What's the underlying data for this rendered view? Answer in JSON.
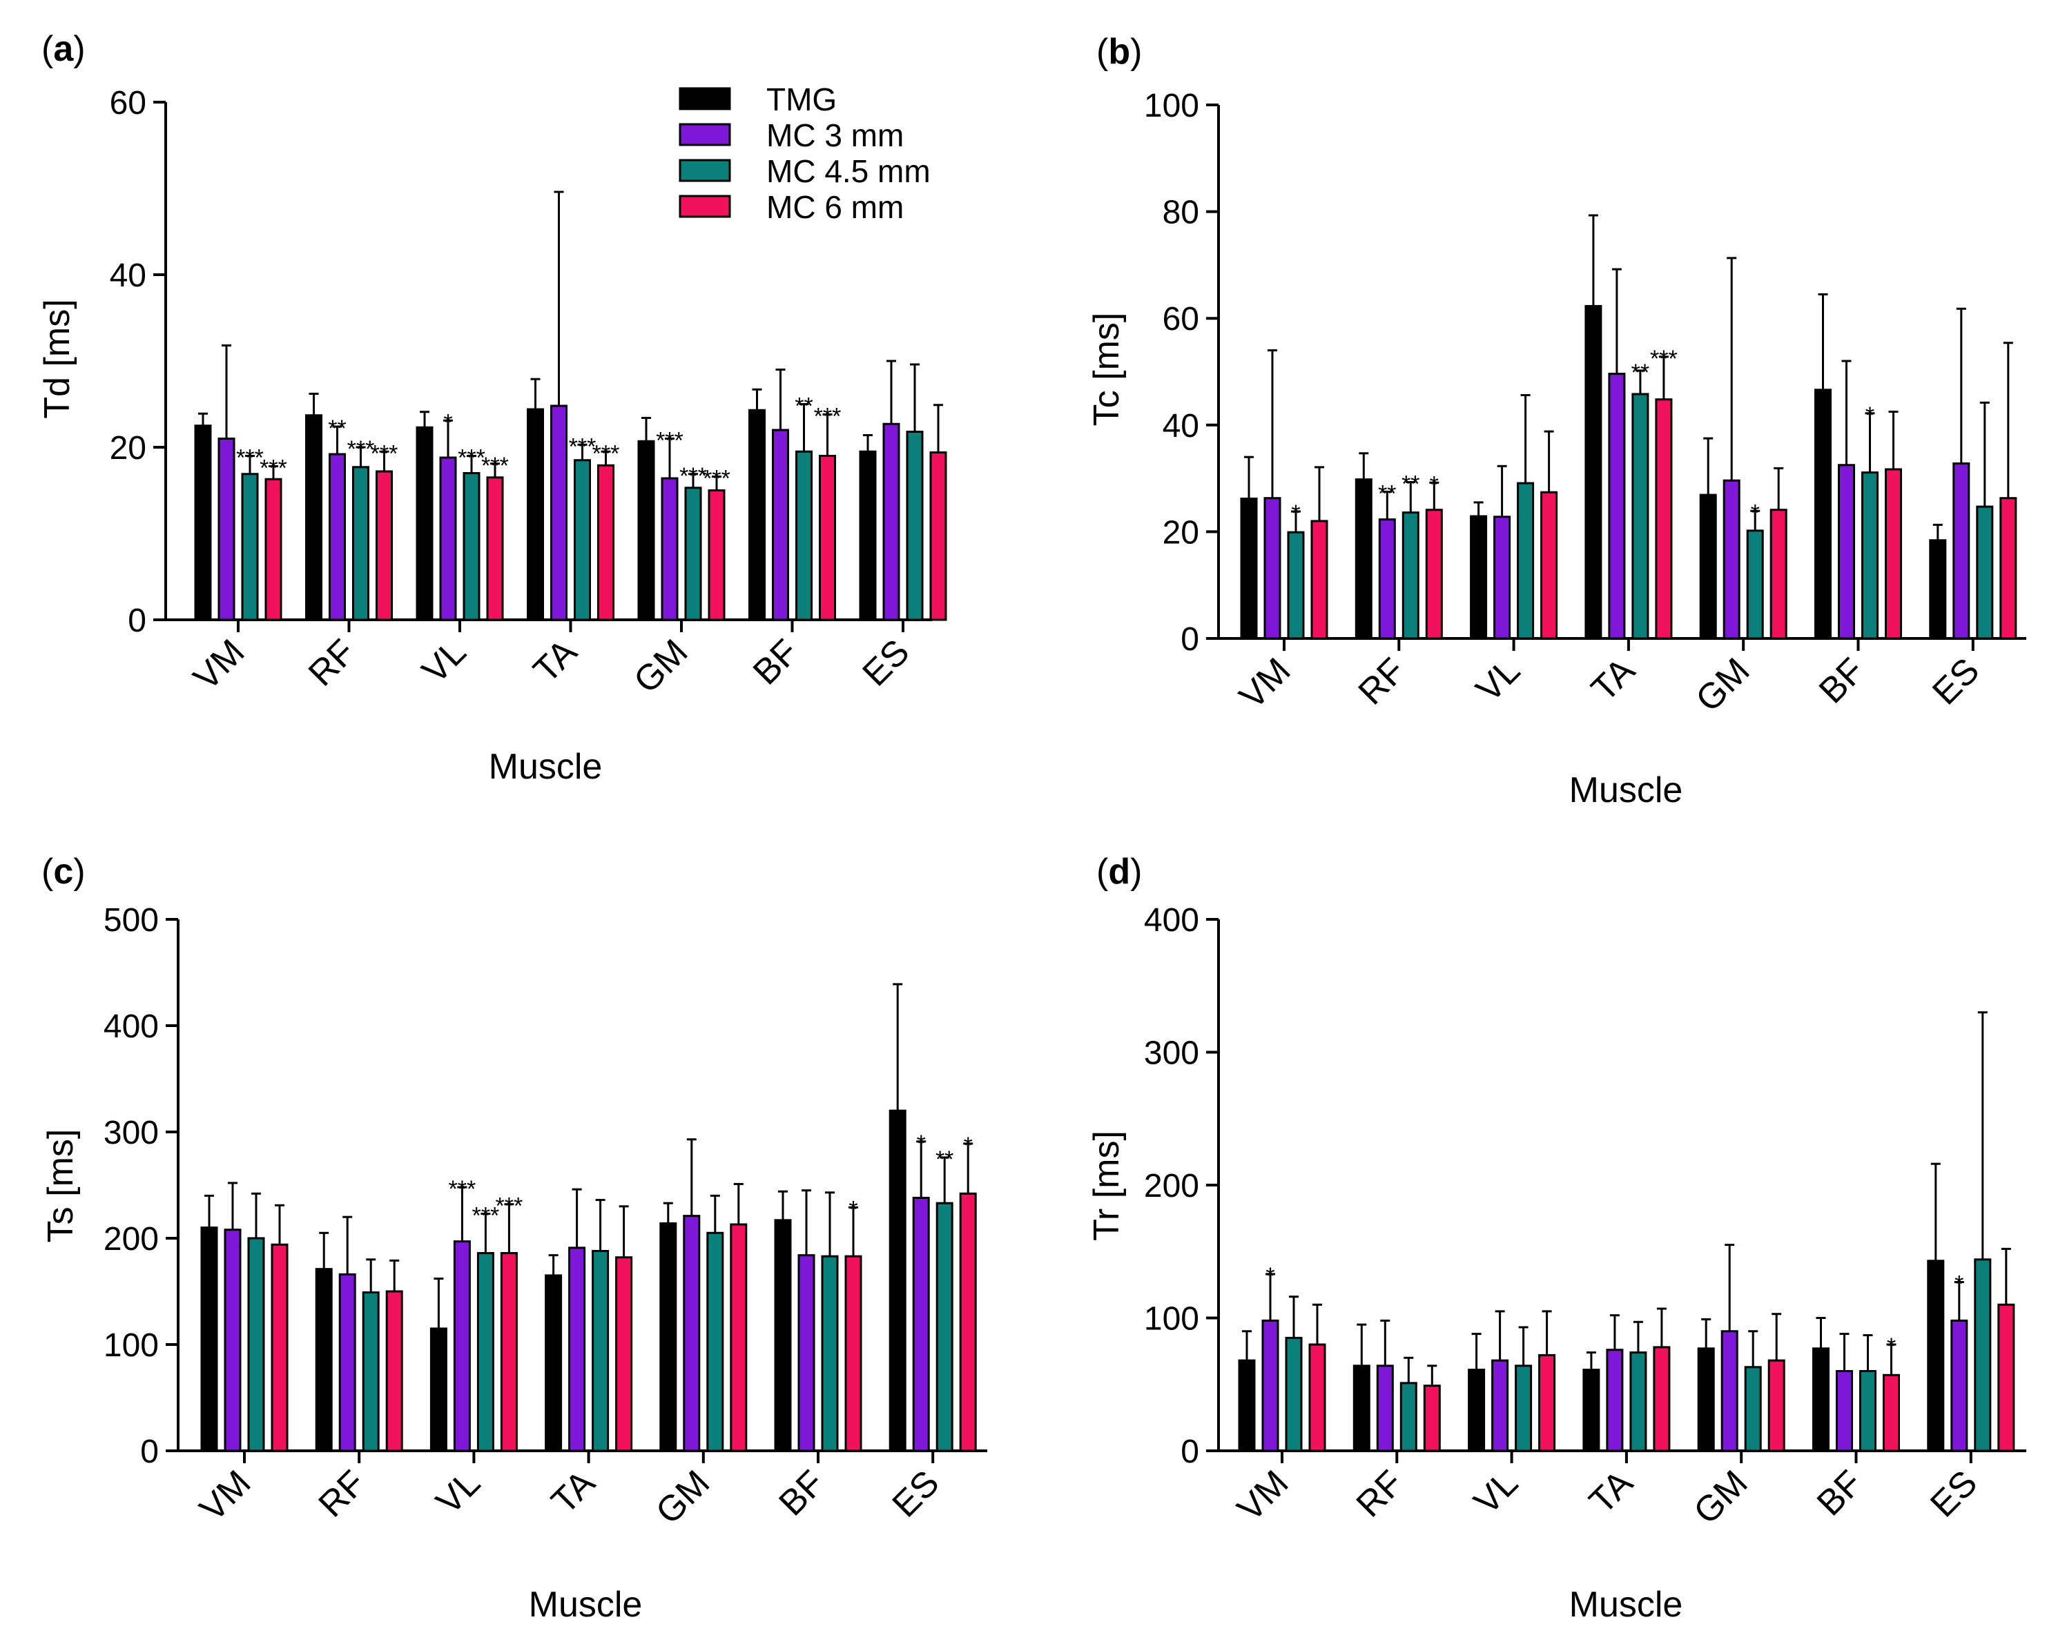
{
  "colors": {
    "series": [
      "#000000",
      "#7f17d9",
      "#0b7f7a",
      "#f2115c"
    ],
    "axis": "#000000",
    "errorbar": "#000000"
  },
  "legend": [
    "TMG",
    "MC 3 mm",
    "MC 4.5 mm",
    "MC 6 mm"
  ],
  "chart_data": [
    {
      "panel": "a",
      "type": "bar",
      "title": "",
      "xlabel": "Muscle",
      "ylabel": "Td [ms]",
      "ylim": [
        0,
        60
      ],
      "yticks": [
        0,
        20,
        40,
        60
      ],
      "grid": false,
      "legend_position": "top-right",
      "categories": [
        "VM",
        "RF",
        "VL",
        "TA",
        "GM",
        "BF",
        "ES"
      ],
      "series": [
        {
          "name": "TMG",
          "values": [
            22.5,
            23.7,
            22.3,
            24.4,
            20.7,
            24.3,
            19.5
          ],
          "errors": [
            1.4,
            2.5,
            1.8,
            3.5,
            2.7,
            2.4,
            1.9
          ]
        },
        {
          "name": "MC 3 mm",
          "values": [
            21.0,
            19.2,
            18.8,
            24.8,
            16.4,
            22.0,
            22.7
          ],
          "errors": [
            10.8,
            3.2,
            4.3,
            24.8,
            4.6,
            7.0,
            7.3
          ]
        },
        {
          "name": "MC 4.5 mm",
          "values": [
            16.9,
            17.7,
            17.0,
            18.5,
            15.3,
            19.5,
            21.8
          ],
          "errors": [
            2.1,
            2.3,
            2.0,
            1.8,
            1.6,
            5.5,
            7.8
          ]
        },
        {
          "name": "MC 6 mm",
          "values": [
            16.3,
            17.2,
            16.5,
            17.9,
            15.0,
            19.0,
            19.4
          ],
          "errors": [
            1.5,
            2.3,
            1.6,
            1.6,
            1.6,
            4.8,
            5.5
          ]
        }
      ],
      "annotations": [
        [
          "",
          "",
          "***",
          "***"
        ],
        [
          "",
          "**",
          "***",
          "***"
        ],
        [
          "",
          "*",
          "***",
          "***"
        ],
        [
          "",
          "",
          "***",
          "***"
        ],
        [
          "",
          "***",
          "***",
          "***"
        ],
        [
          "",
          "",
          "**",
          "***"
        ],
        [
          "",
          "",
          "",
          ""
        ]
      ]
    },
    {
      "panel": "b",
      "type": "bar",
      "title": "",
      "xlabel": "Muscle",
      "ylabel": "Tc [ms]",
      "ylim": [
        0,
        100
      ],
      "yticks": [
        0,
        20,
        40,
        60,
        80,
        100
      ],
      "grid": false,
      "categories": [
        "VM",
        "RF",
        "VL",
        "TA",
        "GM",
        "BF",
        "ES"
      ],
      "series": [
        {
          "name": "TMG",
          "values": [
            26.2,
            29.8,
            22.9,
            62.3,
            26.9,
            46.6,
            18.4
          ],
          "errors": [
            7.8,
            4.9,
            2.6,
            17.0,
            10.6,
            17.9,
            2.9
          ]
        },
        {
          "name": "MC 3 mm",
          "values": [
            26.3,
            22.3,
            22.8,
            49.6,
            29.6,
            32.5,
            32.8
          ],
          "errors": [
            27.7,
            5.2,
            9.5,
            19.6,
            41.7,
            19.5,
            29.0
          ]
        },
        {
          "name": "MC 4.5 mm",
          "values": [
            19.9,
            23.6,
            29.1,
            45.8,
            20.2,
            31.1,
            24.7
          ],
          "errors": [
            3.9,
            5.7,
            16.5,
            4.4,
            3.7,
            11.1,
            19.5
          ]
        },
        {
          "name": "MC 6 mm",
          "values": [
            22.0,
            24.1,
            27.4,
            44.8,
            24.1,
            31.7,
            26.3
          ],
          "errors": [
            10.1,
            5.1,
            11.4,
            8.0,
            7.8,
            10.8,
            29.1
          ]
        }
      ],
      "annotations": [
        [
          "",
          "",
          "*",
          ""
        ],
        [
          "",
          "**",
          "**",
          "*"
        ],
        [
          "",
          "",
          "",
          ""
        ],
        [
          "",
          "",
          "**",
          "***"
        ],
        [
          "",
          "",
          "*",
          ""
        ],
        [
          "",
          "",
          "*",
          ""
        ],
        [
          "",
          "",
          "",
          ""
        ]
      ]
    },
    {
      "panel": "c",
      "type": "bar",
      "title": "",
      "xlabel": "Muscle",
      "ylabel": "Ts [ms]",
      "ylim": [
        0,
        500
      ],
      "yticks": [
        0,
        100,
        200,
        300,
        400,
        500
      ],
      "grid": false,
      "categories": [
        "VM",
        "RF",
        "VL",
        "TA",
        "GM",
        "BF",
        "ES"
      ],
      "series": [
        {
          "name": "TMG",
          "values": [
            210,
            171,
            115,
            165,
            214,
            217,
            320
          ],
          "errors": [
            30,
            34,
            47,
            19,
            19,
            27,
            119
          ]
        },
        {
          "name": "MC 3 mm",
          "values": [
            208,
            166,
            197,
            191,
            221,
            184,
            238
          ],
          "errors": [
            44,
            54,
            51,
            55,
            72,
            61,
            53
          ]
        },
        {
          "name": "MC 4.5 mm",
          "values": [
            200,
            149,
            186,
            188,
            205,
            183,
            233
          ],
          "errors": [
            42,
            31,
            37,
            48,
            35,
            60,
            43
          ]
        },
        {
          "name": "MC 6 mm",
          "values": [
            194,
            150,
            186,
            182,
            213,
            183,
            242
          ],
          "errors": [
            37,
            29,
            46,
            48,
            38,
            46,
            47
          ]
        }
      ],
      "annotations": [
        [
          "",
          "",
          "",
          ""
        ],
        [
          "",
          "",
          "",
          ""
        ],
        [
          "",
          "***",
          "***",
          "***"
        ],
        [
          "",
          "",
          "",
          ""
        ],
        [
          "",
          "",
          "",
          ""
        ],
        [
          "",
          "",
          "",
          "*"
        ],
        [
          "",
          "*",
          "**",
          "*"
        ]
      ]
    },
    {
      "panel": "d",
      "type": "bar",
      "title": "",
      "xlabel": "Muscle",
      "ylabel": "Tr [ms]",
      "ylim": [
        0,
        400
      ],
      "yticks": [
        0,
        100,
        200,
        300,
        400
      ],
      "grid": false,
      "categories": [
        "VM",
        "RF",
        "VL",
        "TA",
        "GM",
        "BF",
        "ES"
      ],
      "series": [
        {
          "name": "TMG",
          "values": [
            68,
            64,
            61,
            61,
            77,
            77,
            143
          ],
          "errors": [
            22,
            31,
            27,
            13,
            22,
            23,
            73
          ]
        },
        {
          "name": "MC 3 mm",
          "values": [
            98,
            64,
            68,
            76,
            90,
            60,
            98
          ],
          "errors": [
            35,
            34,
            37,
            26,
            65,
            28,
            29
          ]
        },
        {
          "name": "MC 4.5 mm",
          "values": [
            85,
            51,
            64,
            74,
            63,
            60,
            144
          ],
          "errors": [
            31,
            19,
            29,
            23,
            27,
            27,
            186
          ]
        },
        {
          "name": "MC 6 mm",
          "values": [
            80,
            49,
            72,
            78,
            68,
            57,
            110
          ],
          "errors": [
            30,
            15,
            33,
            29,
            35,
            23,
            42
          ]
        }
      ],
      "annotations": [
        [
          "",
          "*",
          "",
          ""
        ],
        [
          "",
          "",
          "",
          ""
        ],
        [
          "",
          "",
          "",
          ""
        ],
        [
          "",
          "",
          "",
          ""
        ],
        [
          "",
          "",
          "",
          ""
        ],
        [
          "",
          "",
          "",
          "*"
        ],
        [
          "",
          "*",
          "",
          ""
        ]
      ]
    }
  ]
}
